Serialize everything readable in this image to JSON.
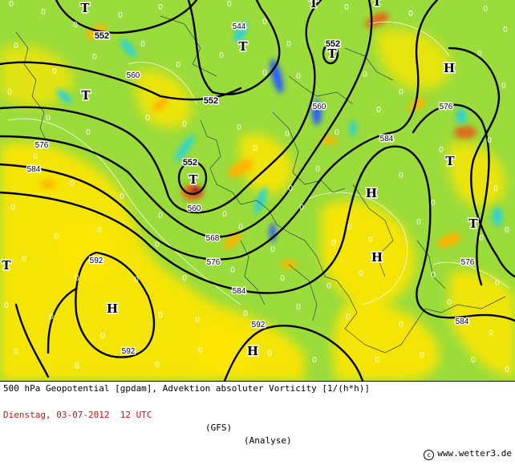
{
  "map": {
    "colors": {
      "background_green": "#9adc3c",
      "yellow": "#ffe600",
      "orange": "#ffb400",
      "red_orange": "#e06a1e",
      "dark_red": "#a0101a",
      "cyan": "#2ad2d8",
      "blue": "#2a5cff",
      "contour": "#000000",
      "coastline": "#1a2a4a"
    },
    "pressure_labels": [
      {
        "text": "T",
        "kind": "low"
      },
      {
        "text": "T",
        "kind": "low"
      },
      {
        "text": "T",
        "kind": "low"
      },
      {
        "text": "T",
        "kind": "low"
      },
      {
        "text": "T",
        "kind": "low"
      },
      {
        "text": "T",
        "kind": "low"
      },
      {
        "text": "T",
        "kind": "low"
      },
      {
        "text": "T",
        "kind": "low"
      },
      {
        "text": "T",
        "kind": "low"
      },
      {
        "text": "T",
        "kind": "low"
      },
      {
        "text": "H",
        "kind": "high"
      },
      {
        "text": "H",
        "kind": "high"
      },
      {
        "text": "H",
        "kind": "high"
      },
      {
        "text": "H",
        "kind": "high"
      },
      {
        "text": "H",
        "kind": "high"
      }
    ],
    "contour_labels": [
      {
        "text": "552"
      },
      {
        "text": "552"
      },
      {
        "text": "552"
      },
      {
        "text": "552"
      },
      {
        "text": "544"
      },
      {
        "text": "560"
      },
      {
        "text": "560"
      },
      {
        "text": "560"
      },
      {
        "text": "568"
      },
      {
        "text": "576"
      },
      {
        "text": "576"
      },
      {
        "text": "576"
      },
      {
        "text": "576"
      },
      {
        "text": "584"
      },
      {
        "text": "584"
      },
      {
        "text": "584"
      },
      {
        "text": "584"
      },
      {
        "text": "592"
      },
      {
        "text": "592"
      },
      {
        "text": "592"
      }
    ],
    "zero_label": "0"
  },
  "footer": {
    "title": "500 hPa Geopotential [gpdam], Advektion absoluter Vorticity [1/(h*h)]",
    "date": "Dienstag, 03-07-2012  12 UTC",
    "model": "(GFS)",
    "mode": "(Analyse)",
    "credit_symbol": "c",
    "credit": "www.wetter3.de"
  }
}
